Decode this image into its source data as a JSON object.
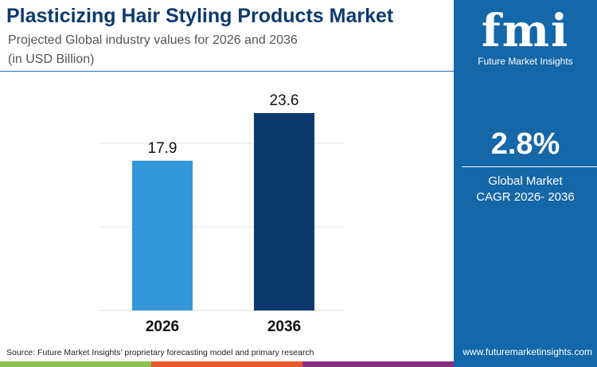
{
  "title": "Plasticizing Hair Styling Products Market",
  "subtitle1": "Projected Global industry values for 2026 and 2036",
  "subtitle2": "(in USD Billion)",
  "brand": {
    "logo": "fmi",
    "name": "Future Market Insights",
    "url": "www.futuremarketinsights.com"
  },
  "cagr": {
    "value": "2.8%",
    "label1": "Global Market",
    "label2": "CAGR 2026- 2036"
  },
  "source": "Source: Future Market Insights’ proprietary forecasting model and primary research",
  "colors": {
    "bar2026": "#3396d8",
    "bar2036": "#0d3a6e",
    "panel": "#1467a8",
    "strip": [
      "#8cc14b",
      "#e85a2a",
      "#8a2f84"
    ]
  },
  "chart_data": {
    "type": "bar",
    "categories": [
      "2026",
      "2036"
    ],
    "values": [
      17.9,
      23.6
    ],
    "ylim": [
      0,
      24
    ],
    "grid": true,
    "title": "",
    "xlabel": "",
    "ylabel": ""
  }
}
